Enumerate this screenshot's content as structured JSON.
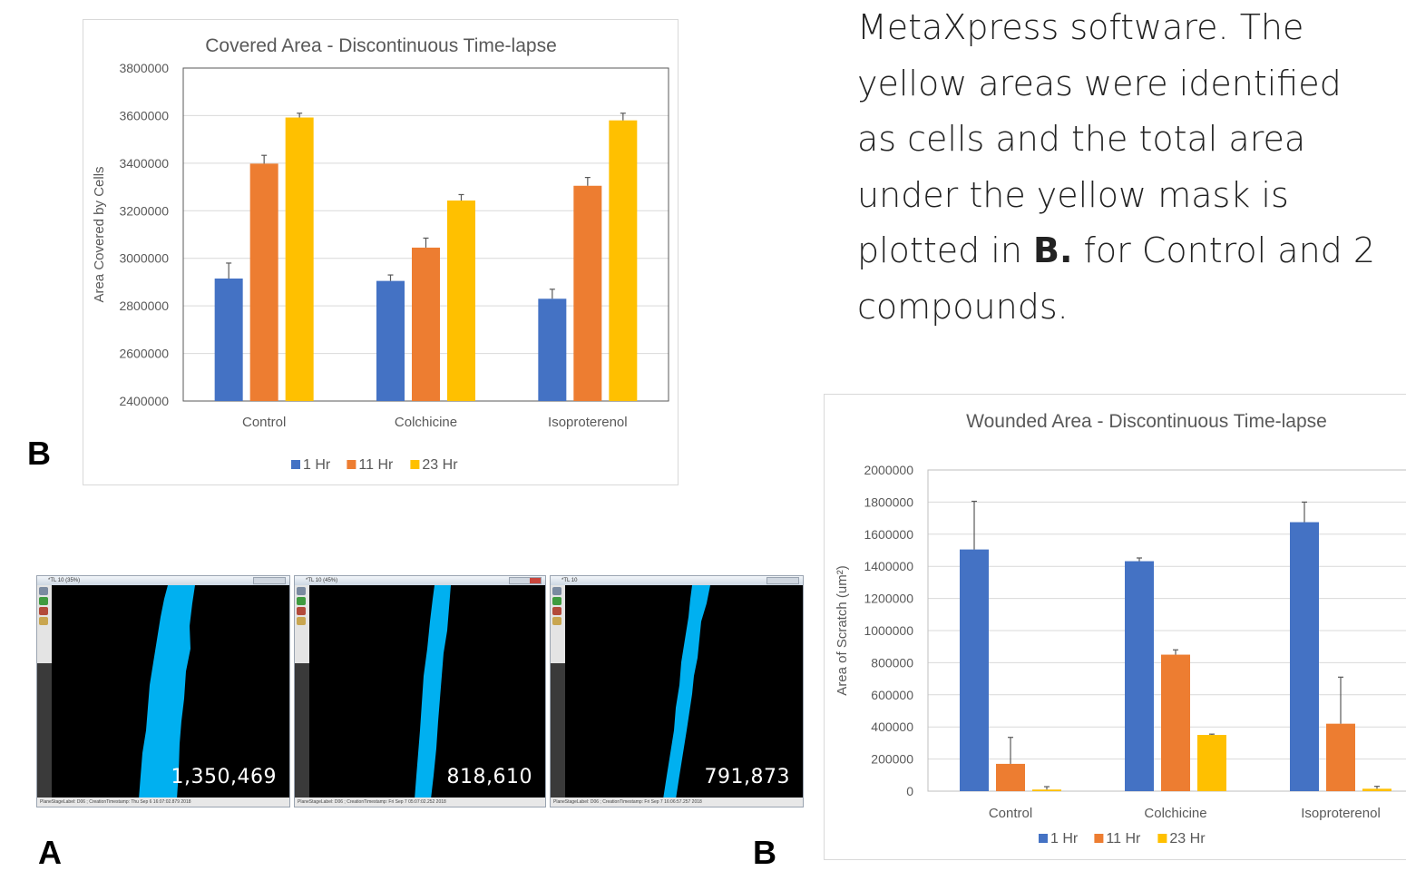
{
  "description": {
    "line1": "MetaXpress software. The",
    "line2": "yellow areas were identified",
    "line3": "as cells and the total area",
    "line4": "under the yellow mask is",
    "line5_a": "plotted in ",
    "line5_b": "B.",
    "line5_c": " for Control and 2",
    "line6": "compounds."
  },
  "labels": {
    "covered_panel": "B",
    "screens_panel": "A",
    "wounded_panel": "B"
  },
  "screens": [
    {
      "title": "*TL 10 (35%)",
      "value": "1,350,469",
      "status": "PlaneStageLabel: D06 ; CreationTimestamp: Thu Sep 6 16:07:02.879 2018"
    },
    {
      "title": "*TL 10 (45%)",
      "value": "818,610",
      "status": "PlaneStageLabel: D06 ; CreationTimestamp: Fri Sep 7 05:07:02.252 2018"
    },
    {
      "title": "*TL 10",
      "value": "791,873",
      "status": "PlaneStageLabel: D06 ; CreationTimestamp: Fri Sep 7 16:06:57.257 2018"
    }
  ],
  "colors": {
    "s1": "#4472C4",
    "s2": "#ED7D31",
    "s3": "#FFC000",
    "mask": "#00B0F0",
    "grid": "#d9d9d9",
    "text": "#595959"
  },
  "chart_data": [
    {
      "type": "bar",
      "title": "Covered Area - Discontinuous Time-lapse",
      "xlabel": "",
      "ylabel": "Area Covered by Cells",
      "categories": [
        "Control",
        "Colchicine",
        "Isoproterenol"
      ],
      "ylim": [
        2400000,
        3800000
      ],
      "yticks": [
        2400000,
        2600000,
        2800000,
        3000000,
        3200000,
        3400000,
        3600000,
        3800000
      ],
      "grid": true,
      "legend": "bottom",
      "series": [
        {
          "name": "1 Hr",
          "values": [
            2915000,
            2905000,
            2830000
          ],
          "errors": [
            65000,
            25000,
            40000
          ]
        },
        {
          "name": "11 Hr",
          "values": [
            3398000,
            3045000,
            3305000
          ],
          "errors": [
            35000,
            40000,
            35000
          ]
        },
        {
          "name": "23 Hr",
          "values": [
            3592000,
            3243000,
            3580000
          ],
          "errors": [
            18000,
            25000,
            30000
          ]
        }
      ]
    },
    {
      "type": "bar",
      "title": "Wounded Area - Discontinuous Time-lapse",
      "xlabel": "",
      "ylabel": "Area of Scratch (um²)",
      "categories": [
        "Control",
        "Colchicine",
        "Isoproterenol"
      ],
      "ylim": [
        0,
        2000000
      ],
      "yticks": [
        0,
        200000,
        400000,
        600000,
        800000,
        1000000,
        1200000,
        1400000,
        1600000,
        1800000,
        2000000
      ],
      "grid": true,
      "legend": "bottom",
      "series": [
        {
          "name": "1 Hr",
          "values": [
            1505000,
            1432000,
            1675000
          ],
          "errors": [
            300000,
            20000,
            125000
          ]
        },
        {
          "name": "11 Hr",
          "values": [
            170000,
            850000,
            420000
          ],
          "errors": [
            165000,
            30000,
            290000
          ]
        },
        {
          "name": "23 Hr",
          "values": [
            10000,
            350000,
            15000
          ],
          "errors": [
            18000,
            5000,
            15000
          ]
        }
      ]
    }
  ]
}
